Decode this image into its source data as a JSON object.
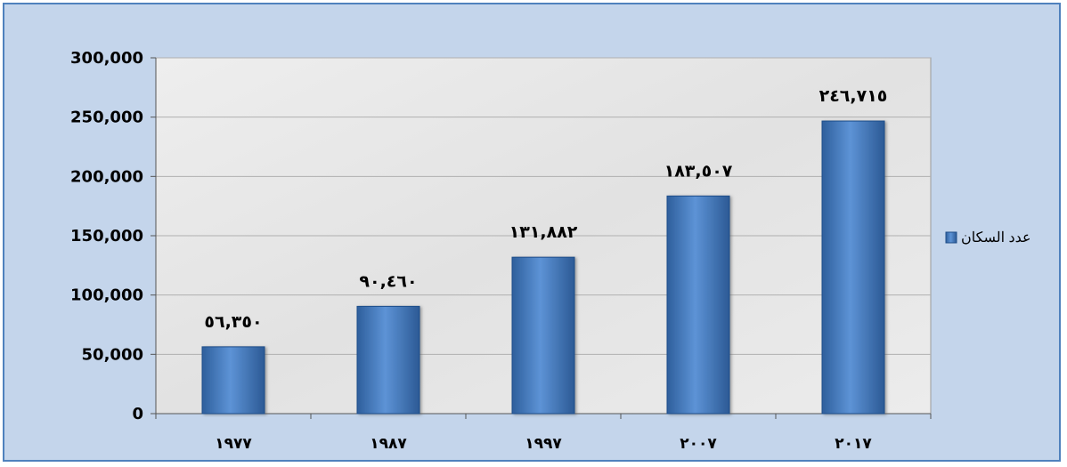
{
  "chart_data": {
    "type": "bar",
    "categories": [
      "١٩٧٧",
      "١٩٨٧",
      "١٩٩٧",
      "٢٠٠٧",
      "٢٠١٧"
    ],
    "series": [
      {
        "name": "عدد السكان",
        "values": [
          56350,
          90460,
          131882,
          183507,
          246715
        ],
        "data_labels": [
          "٥٦,٣٥٠",
          "٩٠,٤٦٠",
          "١٣١,٨٨٢",
          "١٨٣,٥٠٧",
          "٢٤٦,٧١٥"
        ],
        "color": "#4f81bd"
      }
    ],
    "ylim": [
      0,
      300000
    ],
    "y_ticks": [
      0,
      50000,
      100000,
      150000,
      200000,
      250000,
      300000
    ],
    "y_tick_labels": [
      "0",
      "50,000",
      "100,000",
      "150,000",
      "200,000",
      "250,000",
      "300,000"
    ],
    "grid": true,
    "legend_position": "right",
    "title": "",
    "xlabel": "",
    "ylabel": ""
  },
  "colors": {
    "frame_border": "#4f81bd",
    "frame_background": "#c4d5eb",
    "plot_background": "#e9e9e9",
    "bar_fill": "#4f81bd",
    "gridline": "#b0b0b0"
  }
}
